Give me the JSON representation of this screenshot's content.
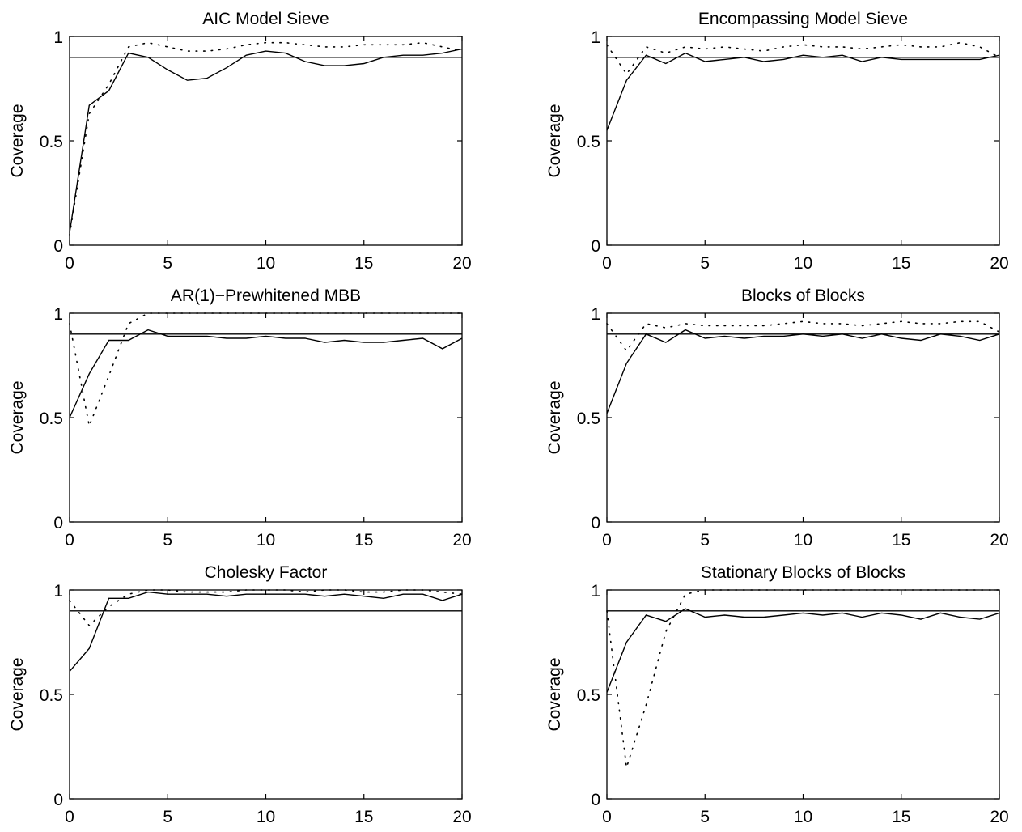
{
  "chart_data": [
    {
      "type": "line",
      "title": "AIC Model Sieve",
      "xlabel": "",
      "ylabel": "Coverage",
      "xlim": [
        0,
        20
      ],
      "ylim": [
        0,
        1
      ],
      "xticks": [
        "0",
        "5",
        "10",
        "15",
        "20"
      ],
      "yticks": [
        "0",
        "0.5",
        "1"
      ],
      "reference_line": 0.9,
      "x": [
        0,
        1,
        2,
        3,
        4,
        5,
        6,
        7,
        8,
        9,
        10,
        11,
        12,
        13,
        14,
        15,
        16,
        17,
        18,
        19,
        20
      ],
      "series": [
        {
          "style": "solid",
          "values": [
            0.06,
            0.67,
            0.74,
            0.92,
            0.9,
            0.84,
            0.79,
            0.8,
            0.85,
            0.91,
            0.93,
            0.92,
            0.88,
            0.86,
            0.86,
            0.87,
            0.9,
            0.91,
            0.91,
            0.92,
            0.94
          ]
        },
        {
          "style": "dotted",
          "values": [
            0.05,
            0.63,
            0.77,
            0.95,
            0.97,
            0.95,
            0.93,
            0.93,
            0.94,
            0.96,
            0.97,
            0.97,
            0.96,
            0.95,
            0.95,
            0.96,
            0.96,
            0.96,
            0.97,
            0.95,
            0.93
          ]
        }
      ]
    },
    {
      "type": "line",
      "title": "Encompassing Model Sieve",
      "xlabel": "",
      "ylabel": "Coverage",
      "xlim": [
        0,
        20
      ],
      "ylim": [
        0,
        1
      ],
      "xticks": [
        "0",
        "5",
        "10",
        "15",
        "20"
      ],
      "yticks": [
        "0",
        "0.5",
        "1"
      ],
      "reference_line": 0.9,
      "x": [
        0,
        1,
        2,
        3,
        4,
        5,
        6,
        7,
        8,
        9,
        10,
        11,
        12,
        13,
        14,
        15,
        16,
        17,
        18,
        19,
        20
      ],
      "series": [
        {
          "style": "solid",
          "values": [
            0.55,
            0.79,
            0.91,
            0.87,
            0.92,
            0.88,
            0.89,
            0.9,
            0.88,
            0.89,
            0.91,
            0.9,
            0.91,
            0.88,
            0.9,
            0.89,
            0.89,
            0.89,
            0.89,
            0.89,
            0.91
          ]
        },
        {
          "style": "dotted",
          "values": [
            0.96,
            0.82,
            0.95,
            0.92,
            0.95,
            0.94,
            0.95,
            0.94,
            0.93,
            0.95,
            0.96,
            0.95,
            0.95,
            0.94,
            0.95,
            0.96,
            0.95,
            0.95,
            0.97,
            0.95,
            0.9
          ]
        }
      ]
    },
    {
      "type": "line",
      "title": "AR(1)−Prewhitened MBB",
      "xlabel": "",
      "ylabel": "Coverage",
      "xlim": [
        0,
        20
      ],
      "ylim": [
        0,
        1
      ],
      "xticks": [
        "0",
        "5",
        "10",
        "15",
        "20"
      ],
      "yticks": [
        "0",
        "0.5",
        "1"
      ],
      "reference_line": 0.9,
      "x": [
        0,
        1,
        2,
        3,
        4,
        5,
        6,
        7,
        8,
        9,
        10,
        11,
        12,
        13,
        14,
        15,
        16,
        17,
        18,
        19,
        20
      ],
      "series": [
        {
          "style": "solid",
          "values": [
            0.5,
            0.71,
            0.87,
            0.87,
            0.92,
            0.89,
            0.89,
            0.89,
            0.88,
            0.88,
            0.89,
            0.88,
            0.88,
            0.86,
            0.87,
            0.86,
            0.86,
            0.87,
            0.88,
            0.83,
            0.88
          ]
        },
        {
          "style": "dotted",
          "values": [
            0.95,
            0.46,
            0.7,
            0.95,
            1.0,
            1.0,
            1.0,
            1.0,
            1.0,
            1.0,
            1.0,
            1.0,
            1.0,
            1.0,
            1.0,
            1.0,
            1.0,
            1.0,
            1.0,
            1.0,
            1.0
          ]
        }
      ]
    },
    {
      "type": "line",
      "title": "Blocks of Blocks",
      "xlabel": "",
      "ylabel": "Coverage",
      "xlim": [
        0,
        20
      ],
      "ylim": [
        0,
        1
      ],
      "xticks": [
        "0",
        "5",
        "10",
        "15",
        "20"
      ],
      "yticks": [
        "0",
        "0.5",
        "1"
      ],
      "reference_line": 0.9,
      "x": [
        0,
        1,
        2,
        3,
        4,
        5,
        6,
        7,
        8,
        9,
        10,
        11,
        12,
        13,
        14,
        15,
        16,
        17,
        18,
        19,
        20
      ],
      "series": [
        {
          "style": "solid",
          "values": [
            0.52,
            0.76,
            0.9,
            0.86,
            0.92,
            0.88,
            0.89,
            0.88,
            0.89,
            0.89,
            0.9,
            0.89,
            0.9,
            0.88,
            0.9,
            0.88,
            0.87,
            0.9,
            0.89,
            0.87,
            0.9
          ]
        },
        {
          "style": "dotted",
          "values": [
            0.95,
            0.82,
            0.95,
            0.93,
            0.95,
            0.94,
            0.94,
            0.94,
            0.94,
            0.95,
            0.96,
            0.95,
            0.95,
            0.94,
            0.95,
            0.96,
            0.95,
            0.95,
            0.96,
            0.96,
            0.91
          ]
        }
      ]
    },
    {
      "type": "line",
      "title": "Cholesky Factor",
      "xlabel": "",
      "ylabel": "Coverage",
      "xlim": [
        0,
        20
      ],
      "ylim": [
        0,
        1
      ],
      "xticks": [
        "0",
        "5",
        "10",
        "15",
        "20"
      ],
      "yticks": [
        "0",
        "0.5",
        "1"
      ],
      "reference_line": 0.9,
      "x": [
        0,
        1,
        2,
        3,
        4,
        5,
        6,
        7,
        8,
        9,
        10,
        11,
        12,
        13,
        14,
        15,
        16,
        17,
        18,
        19,
        20
      ],
      "series": [
        {
          "style": "solid",
          "values": [
            0.61,
            0.72,
            0.96,
            0.96,
            0.99,
            0.98,
            0.98,
            0.98,
            0.97,
            0.98,
            0.98,
            0.98,
            0.98,
            0.97,
            0.98,
            0.97,
            0.96,
            0.98,
            0.98,
            0.95,
            0.98
          ]
        },
        {
          "style": "dotted",
          "values": [
            0.95,
            0.83,
            0.92,
            0.98,
            1.0,
            1.0,
            0.99,
            0.99,
            0.99,
            1.0,
            1.0,
            1.0,
            0.99,
            1.0,
            1.0,
            0.99,
            0.99,
            1.0,
            1.0,
            0.99,
            0.98
          ]
        }
      ]
    },
    {
      "type": "line",
      "title": "Stationary Blocks of Blocks",
      "xlabel": "",
      "ylabel": "Coverage",
      "xlim": [
        0,
        20
      ],
      "ylim": [
        0,
        1
      ],
      "xticks": [
        "0",
        "5",
        "10",
        "15",
        "20"
      ],
      "yticks": [
        "0",
        "0.5",
        "1"
      ],
      "reference_line": 0.9,
      "x": [
        0,
        1,
        2,
        3,
        4,
        5,
        6,
        7,
        8,
        9,
        10,
        11,
        12,
        13,
        14,
        15,
        16,
        17,
        18,
        19,
        20
      ],
      "series": [
        {
          "style": "solid",
          "values": [
            0.51,
            0.75,
            0.88,
            0.85,
            0.91,
            0.87,
            0.88,
            0.87,
            0.87,
            0.88,
            0.89,
            0.88,
            0.89,
            0.87,
            0.89,
            0.88,
            0.86,
            0.89,
            0.87,
            0.86,
            0.89
          ]
        },
        {
          "style": "dotted",
          "values": [
            0.9,
            0.15,
            0.45,
            0.8,
            0.98,
            1.0,
            1.0,
            1.0,
            1.0,
            1.0,
            1.0,
            1.0,
            1.0,
            1.0,
            1.0,
            1.0,
            1.0,
            1.0,
            1.0,
            1.0,
            1.0
          ]
        }
      ]
    }
  ]
}
